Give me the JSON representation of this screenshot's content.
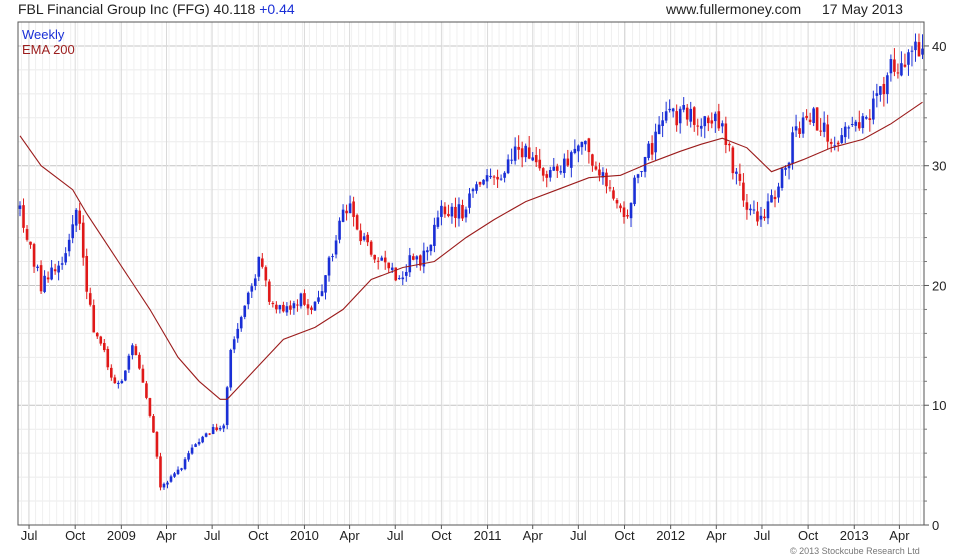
{
  "header": {
    "company": "FBL Financial Group Inc (FFG)",
    "price": "40.118",
    "change": "+0.44",
    "site": "www.fullermoney.com",
    "date": "17 May 2013"
  },
  "copyright": "© 2013 Stockcube Research Ltd",
  "chart_data": {
    "type": "candlestick",
    "frequency": "weekly",
    "legend": [
      {
        "label": "Weekly",
        "color": "#1a2fd6"
      },
      {
        "label": "EMA 200",
        "color": "#9b1c1c"
      }
    ],
    "y_axis": {
      "position": "right",
      "range": [
        0,
        42
      ],
      "ticks": [
        0,
        10,
        20,
        30,
        40
      ]
    },
    "x_axis": {
      "range": [
        "2008-06-09",
        "2013-05-20"
      ],
      "ticks": [
        {
          "label": "Jul",
          "date": "2008-07-01"
        },
        {
          "label": "Oct",
          "date": "2008-10-01"
        },
        {
          "label": "2009",
          "date": "2009-01-01"
        },
        {
          "label": "Apr",
          "date": "2009-04-01"
        },
        {
          "label": "Jul",
          "date": "2009-07-01"
        },
        {
          "label": "Oct",
          "date": "2009-10-01"
        },
        {
          "label": "2010",
          "date": "2010-01-01"
        },
        {
          "label": "Apr",
          "date": "2010-04-01"
        },
        {
          "label": "Jul",
          "date": "2010-07-01"
        },
        {
          "label": "Oct",
          "date": "2010-10-01"
        },
        {
          "label": "2011",
          "date": "2011-01-01"
        },
        {
          "label": "Apr",
          "date": "2011-04-01"
        },
        {
          "label": "Jul",
          "date": "2011-07-01"
        },
        {
          "label": "Oct",
          "date": "2011-10-01"
        },
        {
          "label": "2012",
          "date": "2012-01-01"
        },
        {
          "label": "Apr",
          "date": "2012-04-01"
        },
        {
          "label": "Jul",
          "date": "2012-07-01"
        },
        {
          "label": "Oct",
          "date": "2012-10-01"
        },
        {
          "label": "2013",
          "date": "2013-01-01"
        },
        {
          "label": "Apr",
          "date": "2013-04-01"
        }
      ]
    },
    "grid": true,
    "price_path": [
      [
        "2008-06-13",
        26.5
      ],
      [
        "2008-07-04",
        23
      ],
      [
        "2008-07-25",
        20
      ],
      [
        "2008-08-15",
        21
      ],
      [
        "2008-09-05",
        22
      ],
      [
        "2008-09-26",
        25
      ],
      [
        "2008-10-03",
        27
      ],
      [
        "2008-10-17",
        22
      ],
      [
        "2008-11-07",
        16
      ],
      [
        "2008-11-28",
        15
      ],
      [
        "2008-12-12",
        12
      ],
      [
        "2009-01-02",
        12
      ],
      [
        "2009-01-23",
        15
      ],
      [
        "2009-02-13",
        12
      ],
      [
        "2009-03-06",
        8
      ],
      [
        "2009-03-20",
        3
      ],
      [
        "2009-04-03",
        3.5
      ],
      [
        "2009-05-01",
        5
      ],
      [
        "2009-06-05",
        7
      ],
      [
        "2009-07-03",
        8
      ],
      [
        "2009-07-24",
        8.5
      ],
      [
        "2009-08-07",
        15
      ],
      [
        "2009-08-28",
        17
      ],
      [
        "2009-09-18",
        20
      ],
      [
        "2009-10-02",
        22
      ],
      [
        "2009-10-23",
        19
      ],
      [
        "2009-11-13",
        18
      ],
      [
        "2009-12-04",
        18
      ],
      [
        "2009-12-25",
        19
      ],
      [
        "2010-01-15",
        17.5
      ],
      [
        "2010-02-05",
        20
      ],
      [
        "2010-02-26",
        23
      ],
      [
        "2010-03-19",
        26
      ],
      [
        "2010-04-02",
        27
      ],
      [
        "2010-04-23",
        24
      ],
      [
        "2010-05-14",
        22.5
      ],
      [
        "2010-06-04",
        22
      ],
      [
        "2010-06-25",
        21
      ],
      [
        "2010-07-09",
        20.5
      ],
      [
        "2010-07-30",
        22
      ],
      [
        "2010-08-20",
        22
      ],
      [
        "2010-09-10",
        24
      ],
      [
        "2010-10-01",
        26
      ],
      [
        "2010-10-22",
        26.5
      ],
      [
        "2010-11-12",
        26
      ],
      [
        "2010-12-03",
        28
      ],
      [
        "2010-12-24",
        29
      ],
      [
        "2011-01-14",
        28.5
      ],
      [
        "2011-02-04",
        30
      ],
      [
        "2011-02-25",
        31
      ],
      [
        "2011-03-18",
        31
      ],
      [
        "2011-04-08",
        30
      ],
      [
        "2011-04-29",
        29.5
      ],
      [
        "2011-05-20",
        29.5
      ],
      [
        "2011-06-10",
        30
      ],
      [
        "2011-07-01",
        32
      ],
      [
        "2011-07-22",
        31
      ],
      [
        "2011-08-12",
        29
      ],
      [
        "2011-09-02",
        28
      ],
      [
        "2011-09-23",
        26
      ],
      [
        "2011-10-07",
        25.5
      ],
      [
        "2011-10-28",
        30
      ],
      [
        "2011-11-18",
        31
      ],
      [
        "2011-12-09",
        33
      ],
      [
        "2011-12-30",
        34
      ],
      [
        "2012-01-20",
        34.5
      ],
      [
        "2012-02-10",
        34
      ],
      [
        "2012-03-02",
        34
      ],
      [
        "2012-03-23",
        33.5
      ],
      [
        "2012-04-13",
        34
      ],
      [
        "2012-04-27",
        31
      ],
      [
        "2012-05-18",
        28
      ],
      [
        "2012-06-08",
        26
      ],
      [
        "2012-06-29",
        25.5
      ],
      [
        "2012-07-20",
        27
      ],
      [
        "2012-08-10",
        29
      ],
      [
        "2012-08-31",
        32
      ],
      [
        "2012-09-21",
        34
      ],
      [
        "2012-10-12",
        34
      ],
      [
        "2012-11-02",
        33.5
      ],
      [
        "2012-11-16",
        31
      ],
      [
        "2012-12-07",
        33
      ],
      [
        "2012-12-28",
        33
      ],
      [
        "2013-01-18",
        34
      ],
      [
        "2013-02-08",
        35
      ],
      [
        "2013-03-01",
        37
      ],
      [
        "2013-03-22",
        38.5
      ],
      [
        "2013-04-12",
        38.5
      ],
      [
        "2013-05-03",
        39.5
      ],
      [
        "2013-05-17",
        40.1
      ]
    ],
    "ema_200_path": [
      [
        "2008-06-13",
        32.5
      ],
      [
        "2008-07-25",
        30
      ],
      [
        "2008-09-26",
        28
      ],
      [
        "2008-10-24",
        26
      ],
      [
        "2008-12-26",
        22
      ],
      [
        "2009-02-27",
        18
      ],
      [
        "2009-04-24",
        14
      ],
      [
        "2009-06-05",
        12
      ],
      [
        "2009-07-17",
        10.5
      ],
      [
        "2009-07-31",
        10.5
      ],
      [
        "2009-09-25",
        13
      ],
      [
        "2009-11-20",
        15.5
      ],
      [
        "2010-01-22",
        16.5
      ],
      [
        "2010-03-19",
        18
      ],
      [
        "2010-05-14",
        20.5
      ],
      [
        "2010-07-16",
        21.5
      ],
      [
        "2010-09-17",
        22
      ],
      [
        "2010-11-19",
        24
      ],
      [
        "2011-01-14",
        25.5
      ],
      [
        "2011-03-18",
        27
      ],
      [
        "2011-05-20",
        28
      ],
      [
        "2011-07-22",
        29
      ],
      [
        "2011-09-23",
        29.2
      ],
      [
        "2011-11-18",
        30.2
      ],
      [
        "2012-01-20",
        31.2
      ],
      [
        "2012-03-02",
        31.8
      ],
      [
        "2012-04-13",
        32.3
      ],
      [
        "2012-06-01",
        31.5
      ],
      [
        "2012-07-20",
        29.5
      ],
      [
        "2012-09-21",
        30.5
      ],
      [
        "2012-11-16",
        31.5
      ],
      [
        "2013-01-18",
        32.2
      ],
      [
        "2013-03-15",
        33.5
      ],
      [
        "2013-05-17",
        35.3
      ]
    ]
  }
}
